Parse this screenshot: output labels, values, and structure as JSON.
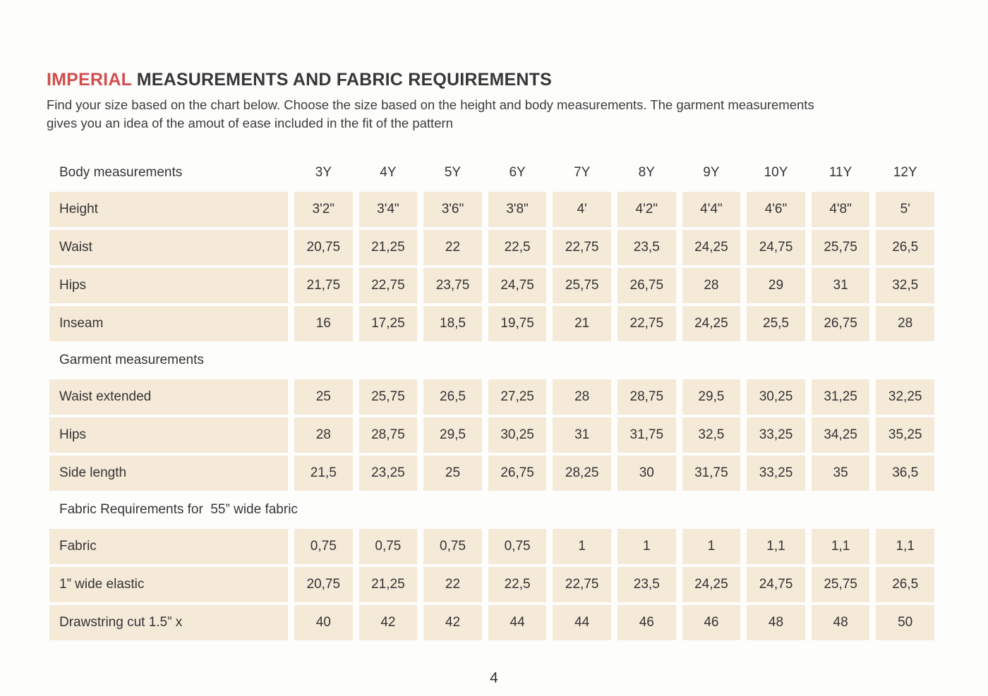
{
  "colors": {
    "accent": "#d14e4e",
    "cell-bg": "#f5e9d8",
    "text": "#373737"
  },
  "page": {
    "title_accent": "IMPERIAL",
    "title_rest": " MEASUREMENTS AND FABRIC REQUIREMENTS",
    "subtitle_lines": [
      "Find your size based on the chart below. Choose the size based on the height and body measurements. The garment measurements",
      "gives you an idea of the amout of ease included in the fit of the pattern"
    ],
    "page_number": "4"
  },
  "table": {
    "size_headers": [
      "3Y",
      "4Y",
      "5Y",
      "6Y",
      "7Y",
      "8Y",
      "9Y",
      "10Y",
      "11Y",
      "12Y"
    ],
    "sections": [
      {
        "label": "Body measurements",
        "rows": [
          {
            "label": "Height",
            "values": [
              "3'2\"",
              "3'4\"",
              "3'6\"",
              "3'8\"",
              "4'",
              "4'2\"",
              "4'4\"",
              "4'6\"",
              "4'8\"",
              "5'"
            ]
          },
          {
            "label": "Waist",
            "values": [
              "20,75",
              "21,25",
              "22",
              "22,5",
              "22,75",
              "23,5",
              "24,25",
              "24,75",
              "25,75",
              "26,5"
            ]
          },
          {
            "label": "Hips",
            "values": [
              "21,75",
              "22,75",
              "23,75",
              "24,75",
              "25,75",
              "26,75",
              "28",
              "29",
              "31",
              "32,5"
            ]
          },
          {
            "label": "Inseam",
            "values": [
              "16",
              "17,25",
              "18,5",
              "19,75",
              "21",
              "22,75",
              "24,25",
              "25,5",
              "26,75",
              "28"
            ]
          }
        ]
      },
      {
        "label": "Garment measurements",
        "rows": [
          {
            "label": "Waist extended",
            "values": [
              "25",
              "25,75",
              "26,5",
              "27,25",
              "28",
              "28,75",
              "29,5",
              "30,25",
              "31,25",
              "32,25"
            ]
          },
          {
            "label": "Hips",
            "values": [
              "28",
              "28,75",
              "29,5",
              "30,25",
              "31",
              "31,75",
              "32,5",
              "33,25",
              "34,25",
              "35,25"
            ]
          },
          {
            "label": "Side length",
            "values": [
              "21,5",
              "23,25",
              "25",
              "26,75",
              "28,25",
              "30",
              "31,75",
              "33,25",
              "35",
              "36,5"
            ]
          }
        ]
      },
      {
        "label": "Fabric Requirements for  55” wide fabric",
        "rows": [
          {
            "label": "Fabric",
            "values": [
              "0,75",
              "0,75",
              "0,75",
              "0,75",
              "1",
              "1",
              "1",
              "1,1",
              "1,1",
              "1,1"
            ]
          },
          {
            "label": "1” wide elastic",
            "values": [
              "20,75",
              "21,25",
              "22",
              "22,5",
              "22,75",
              "23,5",
              "24,25",
              "24,75",
              "25,75",
              "26,5"
            ]
          },
          {
            "label": "Drawstring cut 1.5” x",
            "values": [
              "40",
              "42",
              "42",
              "44",
              "44",
              "46",
              "46",
              "48",
              "48",
              "50"
            ]
          }
        ]
      }
    ]
  }
}
